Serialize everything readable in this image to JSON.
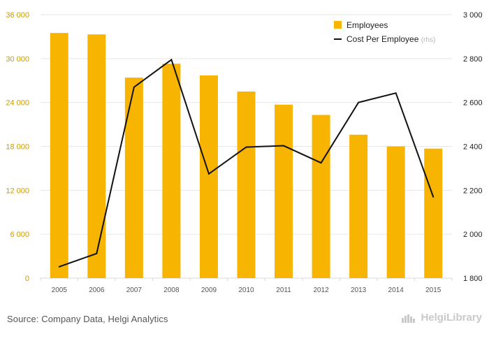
{
  "colors": {
    "bars": "#F7B400",
    "line": "#111111",
    "left_tick": "#C89B00",
    "right_tick": "#222222",
    "grid": "#E6E6E6",
    "axis": "#D8D8D8",
    "footer_text": "#555555",
    "brand": "#C9C9C9"
  },
  "chart_data": {
    "type": "bar",
    "categories": [
      "2005",
      "2006",
      "2007",
      "2008",
      "2009",
      "2010",
      "2011",
      "2012",
      "2013",
      "2014",
      "2015"
    ],
    "series": [
      {
        "name": "Employees",
        "type": "bar",
        "axis": "left",
        "values": [
          33500,
          33300,
          27400,
          29300,
          27700,
          25500,
          23700,
          22300,
          19600,
          18000,
          17700
        ]
      },
      {
        "name": "Cost Per Employee",
        "type": "line",
        "axis": "right",
        "values": [
          1852,
          1912,
          2670,
          2795,
          2275,
          2397,
          2403,
          2325,
          2600,
          2643,
          2170
        ]
      }
    ],
    "left_axis": {
      "ylim": [
        0,
        36000
      ],
      "ticks": [
        0,
        6000,
        12000,
        18000,
        24000,
        30000,
        36000
      ],
      "tick_labels": [
        "0",
        "6 000",
        "12 000",
        "18 000",
        "24 000",
        "30 000",
        "36 000"
      ]
    },
    "right_axis": {
      "ylim": [
        1800,
        3000
      ],
      "ticks": [
        1800,
        2000,
        2200,
        2400,
        2600,
        2800,
        3000
      ],
      "tick_labels": [
        "1 800",
        "2 000",
        "2 200",
        "2 400",
        "2 600",
        "2 800",
        "3 000"
      ]
    },
    "grid": true,
    "legend_position": "top-right",
    "legend": [
      {
        "label": "Employees",
        "type": "bar"
      },
      {
        "label": "Cost Per Employee",
        "suffix": "(rhs)",
        "type": "line"
      }
    ]
  },
  "footer": {
    "source": "Source: Company Data, Helgi Analytics",
    "brand": "HelgiLibrary",
    "brand_icon": "helgi-logo-icon"
  }
}
